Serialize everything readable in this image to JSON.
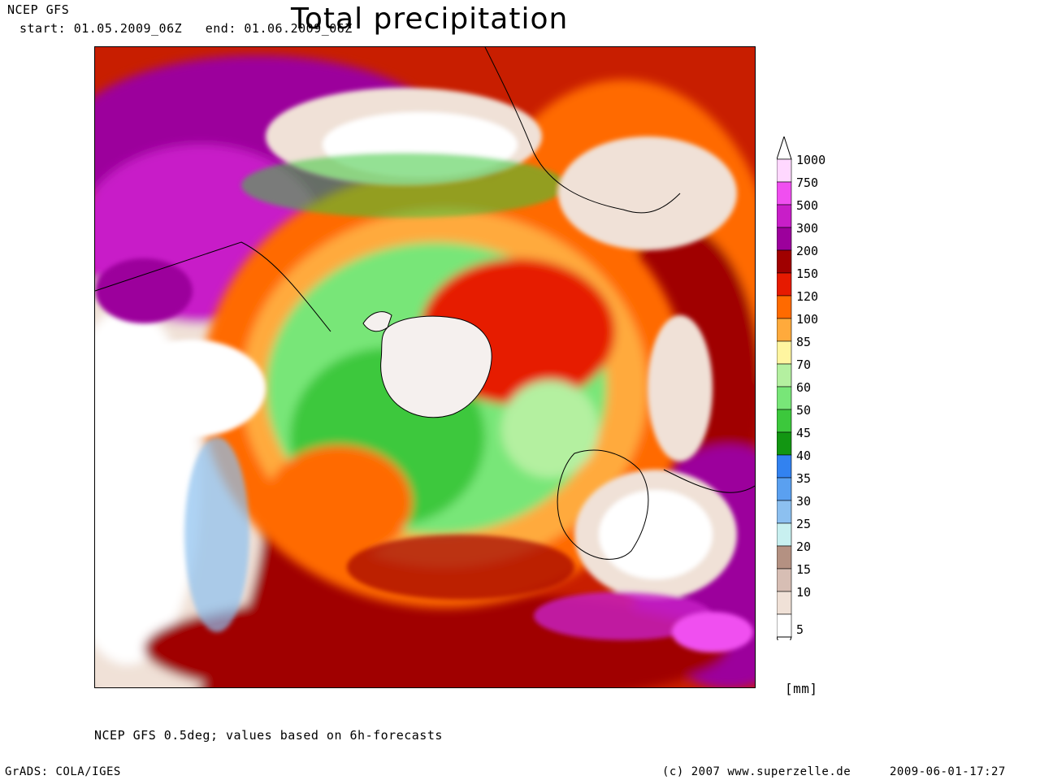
{
  "header": {
    "model": "NCEP GFS",
    "period": "start: 01.05.2009_06Z   end: 01.06.2009_06Z"
  },
  "title": "Total precipitation",
  "colorbar": {
    "unit": "[mm]",
    "levels": [
      {
        "label": "1000",
        "color": "#ffd8ff"
      },
      {
        "label": "750",
        "color": "#f04ff0"
      },
      {
        "label": "500",
        "color": "#c81ec8"
      },
      {
        "label": "300",
        "color": "#9c009c"
      },
      {
        "label": "200",
        "color": "#a00000"
      },
      {
        "label": "150",
        "color": "#e61a00"
      },
      {
        "label": "120",
        "color": "#ff6a00"
      },
      {
        "label": "100",
        "color": "#ffaa3c"
      },
      {
        "label": "85",
        "color": "#fff5a0"
      },
      {
        "label": "70",
        "color": "#b4f0a0"
      },
      {
        "label": "60",
        "color": "#78e678"
      },
      {
        "label": "50",
        "color": "#3cc83c"
      },
      {
        "label": "45",
        "color": "#129612"
      },
      {
        "label": "40",
        "color": "#3282f0"
      },
      {
        "label": "35",
        "color": "#5aa0f0"
      },
      {
        "label": "30",
        "color": "#8cc0f0"
      },
      {
        "label": "25",
        "color": "#c8f0f0"
      },
      {
        "label": "20",
        "color": "#b49182"
      },
      {
        "label": "15",
        "color": "#d7beb4"
      },
      {
        "label": "10",
        "color": "#f0e1d7"
      },
      {
        "label": "5",
        "color": "#ffffff"
      }
    ]
  },
  "footer": {
    "note": "NCEP GFS 0.5deg; values based on 6h-forecasts",
    "grads": "GrADS: COLA/IGES",
    "copyright": "(c) 2007 www.superzelle.de",
    "timestamp": "2009-06-01-17:27"
  }
}
